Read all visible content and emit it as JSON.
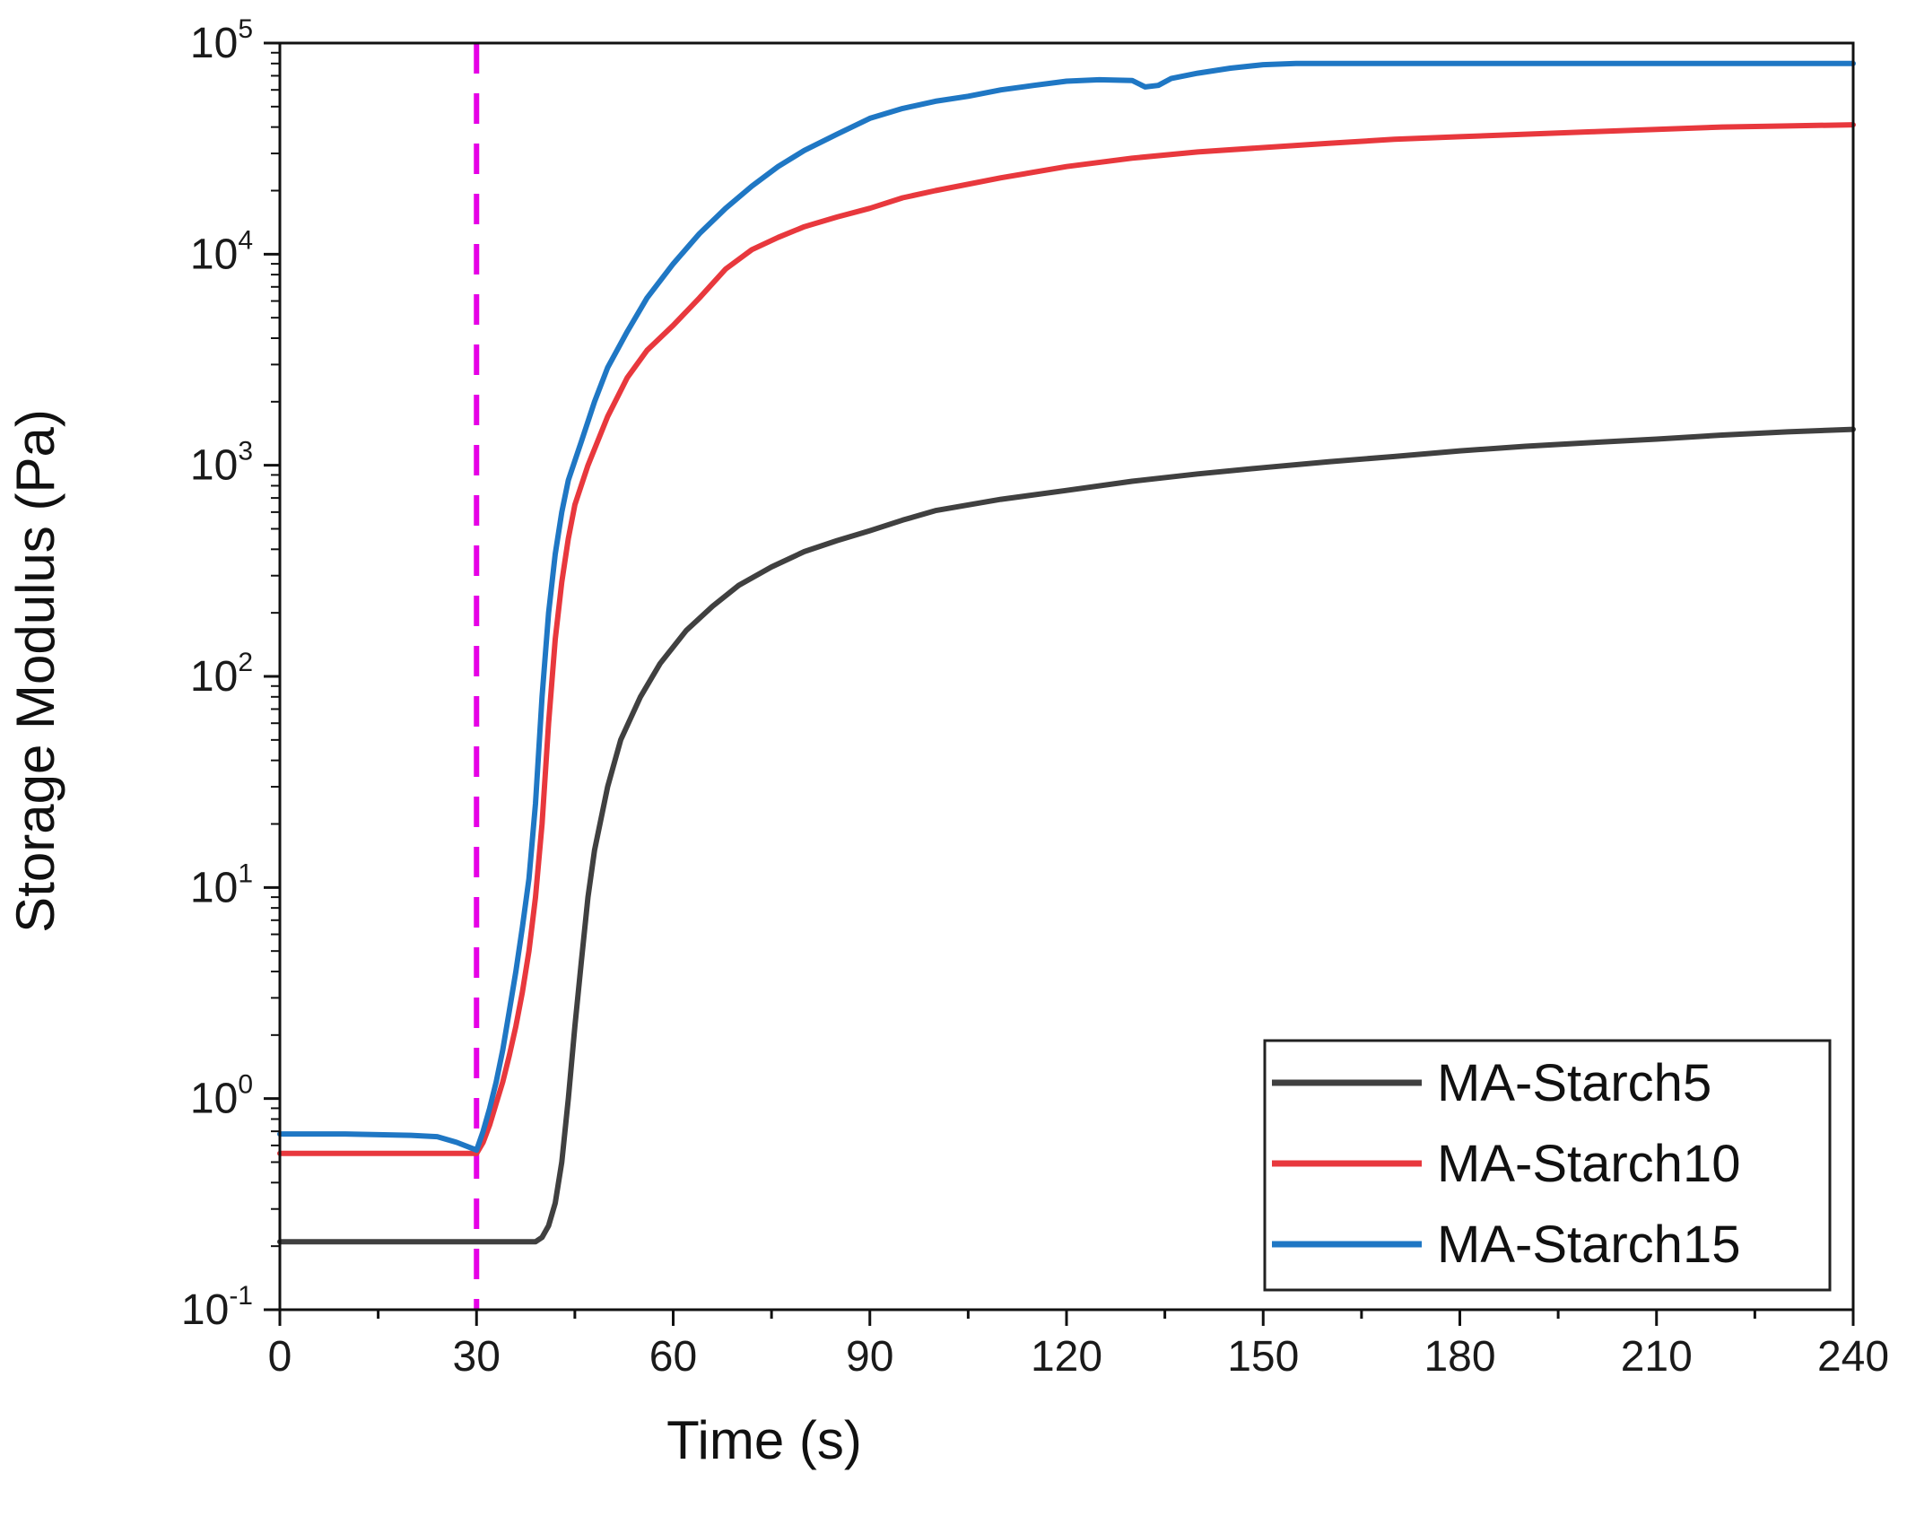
{
  "chart_data": {
    "type": "line",
    "xlabel": "Time (s)",
    "ylabel": "Storage Modulus (Pa)",
    "xlim": [
      0,
      240
    ],
    "ylim": [
      0.1,
      100000
    ],
    "yscale": "log",
    "grid": false,
    "legend_position": "bottom-right",
    "x_ticks": [
      {
        "value": 0,
        "label": "0"
      },
      {
        "value": 30,
        "label": "30"
      },
      {
        "value": 60,
        "label": "60"
      },
      {
        "value": 90,
        "label": "90"
      },
      {
        "value": 120,
        "label": "120"
      },
      {
        "value": 150,
        "label": "150"
      },
      {
        "value": 180,
        "label": "180"
      },
      {
        "value": 210,
        "label": "210"
      },
      {
        "value": 240,
        "label": "240"
      }
    ],
    "y_ticks": [
      {
        "value": 0.1,
        "base": "10",
        "exp": "-1"
      },
      {
        "value": 1,
        "base": "10",
        "exp": "0"
      },
      {
        "value": 10,
        "base": "10",
        "exp": "1"
      },
      {
        "value": 100,
        "base": "10",
        "exp": "2"
      },
      {
        "value": 1000,
        "base": "10",
        "exp": "3"
      },
      {
        "value": 10000,
        "base": "10",
        "exp": "4"
      },
      {
        "value": 100000,
        "base": "10",
        "exp": "5"
      }
    ],
    "annotations": [
      {
        "type": "vertical-dashed-line",
        "x": 30,
        "color": "#e600e6"
      }
    ],
    "series": [
      {
        "name": "MA-Starch5",
        "color": "#404040",
        "points": [
          [
            0,
            0.21
          ],
          [
            20,
            0.21
          ],
          [
            39,
            0.21
          ],
          [
            40,
            0.22
          ],
          [
            41,
            0.25
          ],
          [
            42,
            0.32
          ],
          [
            43,
            0.5
          ],
          [
            44,
            1.0
          ],
          [
            45,
            2.2
          ],
          [
            46,
            4.5
          ],
          [
            47,
            9
          ],
          [
            48,
            15
          ],
          [
            50,
            30
          ],
          [
            52,
            50
          ],
          [
            55,
            80
          ],
          [
            58,
            115
          ],
          [
            62,
            165
          ],
          [
            66,
            215
          ],
          [
            70,
            270
          ],
          [
            75,
            330
          ],
          [
            80,
            390
          ],
          [
            85,
            440
          ],
          [
            90,
            490
          ],
          [
            95,
            550
          ],
          [
            100,
            610
          ],
          [
            110,
            690
          ],
          [
            120,
            760
          ],
          [
            130,
            840
          ],
          [
            140,
            910
          ],
          [
            150,
            975
          ],
          [
            160,
            1040
          ],
          [
            170,
            1100
          ],
          [
            180,
            1170
          ],
          [
            190,
            1230
          ],
          [
            200,
            1280
          ],
          [
            210,
            1330
          ],
          [
            220,
            1390
          ],
          [
            230,
            1440
          ],
          [
            240,
            1480
          ]
        ]
      },
      {
        "name": "MA-Starch10",
        "color": "#e8383d",
        "points": [
          [
            0,
            0.55
          ],
          [
            10,
            0.55
          ],
          [
            20,
            0.55
          ],
          [
            29,
            0.55
          ],
          [
            30,
            0.55
          ],
          [
            31,
            0.62
          ],
          [
            32,
            0.75
          ],
          [
            33,
            0.95
          ],
          [
            34,
            1.2
          ],
          [
            35,
            1.6
          ],
          [
            36,
            2.2
          ],
          [
            37,
            3.2
          ],
          [
            38,
            5
          ],
          [
            39,
            9
          ],
          [
            40,
            20
          ],
          [
            41,
            60
          ],
          [
            42,
            150
          ],
          [
            43,
            280
          ],
          [
            44,
            450
          ],
          [
            45,
            650
          ],
          [
            47,
            1000
          ],
          [
            50,
            1700
          ],
          [
            53,
            2600
          ],
          [
            56,
            3500
          ],
          [
            60,
            4600
          ],
          [
            64,
            6200
          ],
          [
            68,
            8500
          ],
          [
            72,
            10500
          ],
          [
            76,
            12000
          ],
          [
            80,
            13500
          ],
          [
            85,
            15000
          ],
          [
            90,
            16500
          ],
          [
            95,
            18500
          ],
          [
            100,
            20000
          ],
          [
            110,
            23000
          ],
          [
            120,
            26000
          ],
          [
            130,
            28500
          ],
          [
            140,
            30500
          ],
          [
            150,
            32000
          ],
          [
            160,
            33500
          ],
          [
            170,
            35000
          ],
          [
            180,
            36000
          ],
          [
            190,
            37000
          ],
          [
            200,
            38000
          ],
          [
            210,
            39000
          ],
          [
            220,
            40000
          ],
          [
            230,
            40500
          ],
          [
            240,
            41000
          ]
        ]
      },
      {
        "name": "MA-Starch15",
        "color": "#1f77c4",
        "points": [
          [
            0,
            0.68
          ],
          [
            10,
            0.68
          ],
          [
            20,
            0.67
          ],
          [
            24,
            0.66
          ],
          [
            27,
            0.62
          ],
          [
            30,
            0.57
          ],
          [
            31,
            0.7
          ],
          [
            32,
            0.9
          ],
          [
            33,
            1.2
          ],
          [
            34,
            1.7
          ],
          [
            35,
            2.6
          ],
          [
            36,
            4
          ],
          [
            37,
            6.5
          ],
          [
            38,
            11
          ],
          [
            39,
            25
          ],
          [
            40,
            80
          ],
          [
            41,
            200
          ],
          [
            42,
            380
          ],
          [
            43,
            600
          ],
          [
            44,
            850
          ],
          [
            46,
            1300
          ],
          [
            48,
            2000
          ],
          [
            50,
            2900
          ],
          [
            53,
            4300
          ],
          [
            56,
            6200
          ],
          [
            60,
            9000
          ],
          [
            64,
            12500
          ],
          [
            68,
            16500
          ],
          [
            72,
            21000
          ],
          [
            76,
            26000
          ],
          [
            80,
            31000
          ],
          [
            85,
            37000
          ],
          [
            90,
            44000
          ],
          [
            95,
            49000
          ],
          [
            100,
            53000
          ],
          [
            105,
            56000
          ],
          [
            110,
            60000
          ],
          [
            115,
            63000
          ],
          [
            120,
            66000
          ],
          [
            125,
            67000
          ],
          [
            130,
            66500
          ],
          [
            132,
            62000
          ],
          [
            134,
            63000
          ],
          [
            136,
            68000
          ],
          [
            140,
            72000
          ],
          [
            145,
            76000
          ],
          [
            150,
            79000
          ],
          [
            155,
            80000
          ],
          [
            160,
            80000
          ],
          [
            180,
            80000
          ],
          [
            200,
            80000
          ],
          [
            220,
            80000
          ],
          [
            240,
            80000
          ]
        ]
      }
    ]
  }
}
